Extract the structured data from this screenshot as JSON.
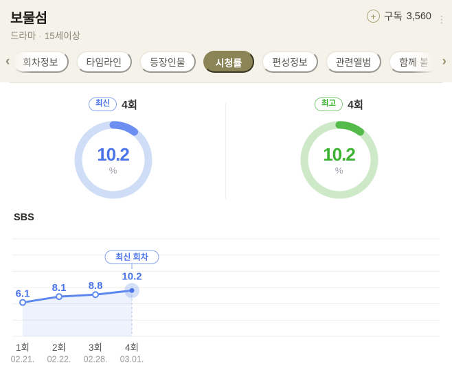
{
  "header": {
    "title": "보물섬",
    "genre": "드라마",
    "separator": "·",
    "rating": "15세이상",
    "plus_icon": "+",
    "subscribe_label": "구독",
    "subscribe_count": "3,560",
    "more_icon": "⋮"
  },
  "tabs": {
    "prev_icon": "‹",
    "next_icon": "›",
    "items": [
      {
        "label": "회차정보",
        "active": false
      },
      {
        "label": "타임라인",
        "active": false
      },
      {
        "label": "등장인물",
        "active": false
      },
      {
        "label": "시청률",
        "active": true
      },
      {
        "label": "편성정보",
        "active": false
      },
      {
        "label": "관련앨범",
        "active": false
      },
      {
        "label": "함께 볼",
        "active": false
      }
    ]
  },
  "ratings": {
    "latest": {
      "badge": "최신",
      "episode": "4회",
      "value": 10.2,
      "max": 100,
      "unit": "%",
      "colors": {
        "arc": "#6b8ef0",
        "ring": "#cfddf7",
        "text": "#4b74e8",
        "badge_text": "#4b74e8",
        "badge_border": "#8aa6ee"
      }
    },
    "highest": {
      "badge": "최고",
      "episode": "4회",
      "value": 10.2,
      "max": 100,
      "unit": "%",
      "colors": {
        "arc": "#54ba49",
        "ring": "#cde9c8",
        "text": "#3bb231",
        "badge_text": "#3bb231",
        "badge_border": "#82cc79"
      }
    }
  },
  "chart_section": {
    "channel": "SBS",
    "tooltip": "최신 회차"
  },
  "chart_data": {
    "type": "line",
    "series": [
      {
        "name": "시청률",
        "values": [
          6.1,
          8.1,
          8.8,
          10.2
        ]
      }
    ],
    "categories": [
      "1회",
      "2회",
      "3회",
      "4회"
    ],
    "category_dates": [
      "02.21.",
      "02.22.",
      "02.28.",
      "03.01."
    ],
    "unit": "%",
    "ylim": [
      0,
      25
    ],
    "grid_interval": 5,
    "grid": true,
    "legend": "none",
    "annotation": {
      "label": "최신 회차",
      "index": 3
    },
    "colors": {
      "line": "#5c88ee",
      "marker_fill": "#ffffff",
      "point": "#4b74e8",
      "area": "rgba(110,145,232,0.12)",
      "grid": "#ededea",
      "value_label": "#4b74e8",
      "axis_label": "#555555",
      "axis_date": "#999999",
      "dashed": "#aac1ec",
      "tooltip_border": "#85a2ec",
      "tooltip_text": "#4b74e8",
      "halo": "rgba(125,158,235,0.32)"
    }
  }
}
